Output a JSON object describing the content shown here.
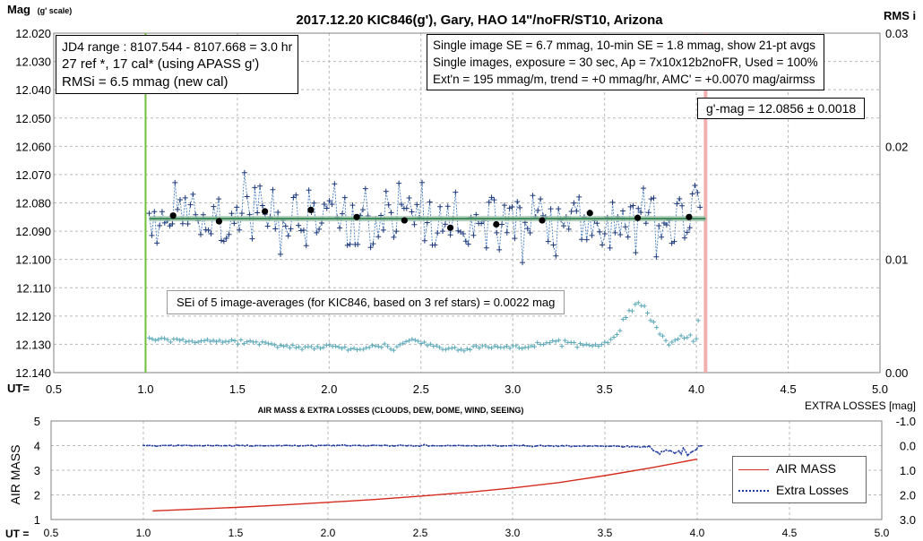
{
  "chart_data": [
    {
      "type": "scatter",
      "title": "2017.12.20  KIC846(g'),  Gary, HAO  14\"/noFR/ST10,  Arizona",
      "ylabel": "Mag",
      "ylabel_sub": "(g' scale)",
      "y2label": "RMS i",
      "xlabel": "UT=",
      "xlim": [
        0.5,
        5.0
      ],
      "ylim": [
        12.02,
        12.14
      ],
      "y_inverted": true,
      "y2lim": [
        0.0,
        0.03
      ],
      "x_ticks": [
        "0.5",
        "1.0",
        "1.5",
        "2.0",
        "2.5",
        "3.0",
        "3.5",
        "4.0",
        "4.5",
        "5.0"
      ],
      "y_ticks": [
        "12.020",
        "12.030",
        "12.040",
        "12.050",
        "12.060",
        "12.070",
        "12.080",
        "12.090",
        "12.100",
        "12.110",
        "12.120",
        "12.130",
        "12.140"
      ],
      "y2_ticks": [
        "0.03",
        "0.02",
        "0.01",
        "0.00"
      ],
      "grid": true,
      "vline_start": 1.0,
      "vline_end": 4.05,
      "mean_mag": 12.0856,
      "annotations": {
        "box1": [
          "JD4 range : 8107.544 - 8107.668 = 3.0  hr",
          "27 ref *, 17 cal* (using APASS g')",
          "RMSi = 6.5 mmag (new cal)"
        ],
        "box2": [
          "Single image SE = 6.7 mmag, 10-min SE = 1.8 mmag, show  21-pt avgs",
          "Single images, exposure = 30 sec, Ap = 7x10x12b2noFR,  Used = 100%",
          "Ext'n = 195 mmag/m, trend =  +0 mmag/hr, AMC' = +0.0070 mag/airmss"
        ],
        "box3": "g'-mag = 12.0856 ± 0.0018",
        "box4": "SEi of 5 image-averages (for KIC846, based on 3 ref stars) = 0.0022  mag"
      },
      "avg_points": {
        "x": [
          1.15,
          1.4,
          1.65,
          1.9,
          2.15,
          2.41,
          2.66,
          2.91,
          3.16,
          3.42,
          3.68,
          3.96
        ],
        "y": [
          12.0845,
          12.0865,
          12.083,
          12.0825,
          12.085,
          12.0862,
          12.0888,
          12.0876,
          12.0862,
          12.0836,
          12.0853,
          12.085
        ]
      },
      "rms_curve": {
        "x": [
          1.02,
          1.1,
          1.2,
          1.3,
          1.4,
          1.5,
          1.6,
          1.7,
          1.8,
          1.9,
          2.0,
          2.1,
          2.2,
          2.3,
          2.35,
          2.45,
          2.55,
          2.65,
          2.75,
          2.85,
          2.95,
          3.05,
          3.15,
          3.25,
          3.35,
          3.45,
          3.55,
          3.62,
          3.68,
          3.72,
          3.78,
          3.85,
          3.92,
          4.0
        ],
        "y": [
          0.003,
          0.003,
          0.0027,
          0.0029,
          0.0027,
          0.0028,
          0.0026,
          0.0024,
          0.0023,
          0.0022,
          0.0023,
          0.0021,
          0.0022,
          0.0024,
          0.0021,
          0.003,
          0.0024,
          0.0021,
          0.0022,
          0.0024,
          0.0022,
          0.0022,
          0.0025,
          0.0028,
          0.0025,
          0.0024,
          0.003,
          0.005,
          0.0062,
          0.0058,
          0.004,
          0.0025,
          0.003,
          0.003
        ]
      }
    },
    {
      "type": "line",
      "title": "AIR MASS & EXTRA LOSSES (CLOUDS, DEW, DOME, WIND, SEEING)",
      "xlabel": "UT =",
      "ylabel": "AIR MASS",
      "y2label": "EXTRA LOSSES [mag]",
      "xlim": [
        0.5,
        5.0
      ],
      "ylim": [
        1,
        5
      ],
      "y2lim": [
        -1.0,
        3.0
      ],
      "y2_inverted": true,
      "x_ticks": [
        "0.5",
        "1.0",
        "1.5",
        "2.0",
        "2.5",
        "3.0",
        "3.5",
        "4.0",
        "4.5",
        "5.0"
      ],
      "y_ticks": [
        "5",
        "4",
        "3",
        "2",
        "1"
      ],
      "y2_ticks": [
        "-1.0",
        "0.0",
        "1.0",
        "2.0",
        "3.0"
      ],
      "grid": true,
      "legend": "right",
      "series": [
        {
          "name": "AIR MASS",
          "color": "#d62a1e",
          "x": [
            1.05,
            1.25,
            1.5,
            1.75,
            2.0,
            2.25,
            2.5,
            2.75,
            3.0,
            3.25,
            3.5,
            3.75,
            4.0
          ],
          "y": [
            1.35,
            1.41,
            1.49,
            1.59,
            1.7,
            1.81,
            1.95,
            2.1,
            2.28,
            2.5,
            2.78,
            3.1,
            3.45
          ]
        },
        {
          "name": "Extra Losses",
          "color": "#1f3a9e",
          "x": [
            1.0,
            1.5,
            2.0,
            2.5,
            3.0,
            3.5,
            3.75,
            3.8,
            3.85,
            3.88,
            3.92,
            3.95,
            3.98,
            4.0,
            4.03
          ],
          "y": [
            0.0,
            0.0,
            0.0,
            0.0,
            0.01,
            0.02,
            0.05,
            0.2,
            0.1,
            0.3,
            0.05,
            0.25,
            0.1,
            0.02,
            0.0
          ]
        }
      ]
    }
  ]
}
